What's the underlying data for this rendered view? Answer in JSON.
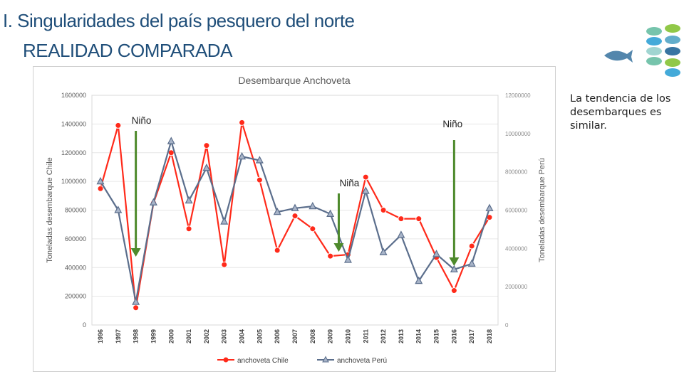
{
  "slide": {
    "title_line1": "I. Singularidades del país pesquero del norte",
    "title_line2": "REALIDAD COMPARADA",
    "note": "La tendencia de los desembarques es similar."
  },
  "colors": {
    "title": "#1f4e79",
    "chile": "#ff2a1a",
    "peru": "#5b6e8c",
    "arrow": "#4e8a2c"
  },
  "decor": {
    "logo_icon": "fish-school-icon"
  },
  "chart_data": {
    "type": "line",
    "title": "Desembarque  Anchoveta",
    "ylabel": "Toneladas desembarque Chile",
    "y2label": "Toneladas desembarque Perú",
    "categories": [
      "1996",
      "1997",
      "1998",
      "1999",
      "2000",
      "2001",
      "2002",
      "2003",
      "2004",
      "2005",
      "2006",
      "2007",
      "2008",
      "2009",
      "2010",
      "2011",
      "2012",
      "2013",
      "2014",
      "2015",
      "2016",
      "2017",
      "2018"
    ],
    "ylim": [
      0,
      1600000
    ],
    "y2lim": [
      0,
      12000000
    ],
    "yticks": [
      "0",
      "200000",
      "400000",
      "600000",
      "800000",
      "1000000",
      "1200000",
      "1400000",
      "1600000"
    ],
    "y2ticks": [
      "0",
      "2000000",
      "4000000",
      "6000000",
      "8000000",
      "10000000",
      "12000000"
    ],
    "series": [
      {
        "name": "anchoveta Chile",
        "axis": "left",
        "values": [
          950000,
          1390000,
          120000,
          850000,
          1200000,
          670000,
          1250000,
          420000,
          1410000,
          1010000,
          520000,
          760000,
          670000,
          480000,
          490000,
          1030000,
          800000,
          740000,
          740000,
          470000,
          240000,
          550000,
          750000
        ]
      },
      {
        "name": "anchoveta Perú",
        "axis": "right",
        "values": [
          7500000,
          6000000,
          1200000,
          6400000,
          9600000,
          6500000,
          8200000,
          5400000,
          8800000,
          8600000,
          5900000,
          6100000,
          6200000,
          5800000,
          3400000,
          7000000,
          3800000,
          4700000,
          2300000,
          3700000,
          2900000,
          3200000,
          6100000
        ]
      }
    ],
    "annotations": [
      {
        "label": "Niño",
        "year": "1998"
      },
      {
        "label": "Niña",
        "year": "2010"
      },
      {
        "label": "Niño",
        "year": "2016"
      }
    ]
  }
}
